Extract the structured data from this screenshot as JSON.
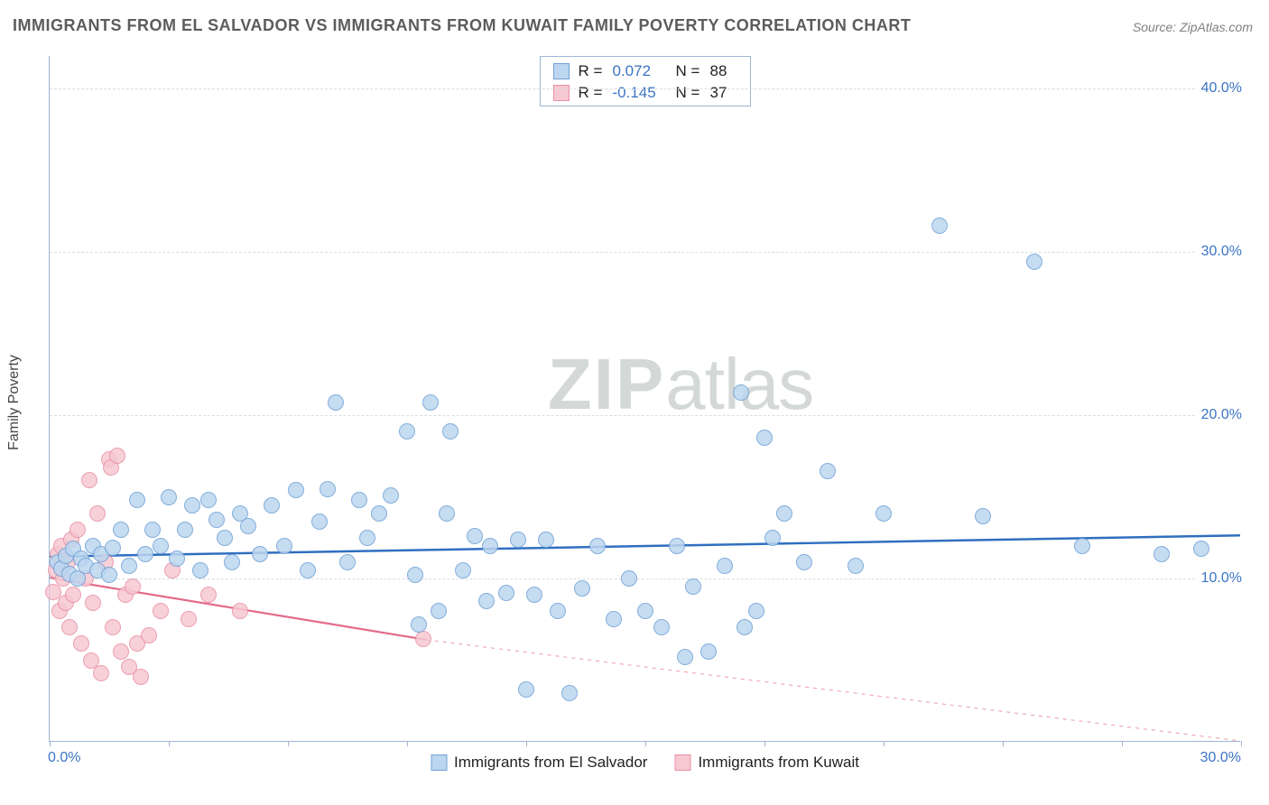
{
  "title": "IMMIGRANTS FROM EL SALVADOR VS IMMIGRANTS FROM KUWAIT FAMILY POVERTY CORRELATION CHART",
  "source": "Source: ZipAtlas.com",
  "ylabel": "Family Poverty",
  "watermark_bold": "ZIP",
  "watermark_rest": "atlas",
  "chart": {
    "type": "scatter",
    "xlim": [
      0,
      30
    ],
    "ylim": [
      0,
      42
    ],
    "x_ticks": [
      0,
      3,
      6,
      9,
      12,
      15,
      18,
      21,
      24,
      27,
      30
    ],
    "x_tick_labels": {
      "0": "0.0%",
      "30": "30.0%"
    },
    "y_ticks": [
      10,
      20,
      30,
      40
    ],
    "y_tick_labels": {
      "10": "10.0%",
      "20": "20.0%",
      "30": "30.0%",
      "40": "40.0%"
    },
    "background_color": "#ffffff",
    "grid_color": "#d8dde3",
    "axis_color": "#9bb7d4",
    "marker_radius": 9,
    "marker_border": 1
  },
  "series": [
    {
      "key": "el_salvador",
      "label": "Immigrants from El Salvador",
      "fill": "#bcd6ef",
      "stroke": "#6fa0d6",
      "trend_color": "#2f6fc0",
      "trend_width": 2.5,
      "trend_dash": "none",
      "trend": {
        "x1": 0,
        "y1": 11.3,
        "x2": 30,
        "y2": 12.6
      },
      "R": "0.072",
      "N": "88",
      "points": [
        [
          0.2,
          11.0
        ],
        [
          0.3,
          10.6
        ],
        [
          0.4,
          11.4
        ],
        [
          0.5,
          10.3
        ],
        [
          0.6,
          11.8
        ],
        [
          0.7,
          10.0
        ],
        [
          0.8,
          11.2
        ],
        [
          0.9,
          10.8
        ],
        [
          1.1,
          12.0
        ],
        [
          1.2,
          10.5
        ],
        [
          1.3,
          11.5
        ],
        [
          1.5,
          10.2
        ],
        [
          1.6,
          11.9
        ],
        [
          1.8,
          13.0
        ],
        [
          2.0,
          10.8
        ],
        [
          2.2,
          14.8
        ],
        [
          2.4,
          11.5
        ],
        [
          2.6,
          13.0
        ],
        [
          2.8,
          12.0
        ],
        [
          3.0,
          15.0
        ],
        [
          3.2,
          11.2
        ],
        [
          3.4,
          13.0
        ],
        [
          3.6,
          14.5
        ],
        [
          3.8,
          10.5
        ],
        [
          4.0,
          14.8
        ],
        [
          4.2,
          13.6
        ],
        [
          4.4,
          12.5
        ],
        [
          4.6,
          11.0
        ],
        [
          4.8,
          14.0
        ],
        [
          5.0,
          13.2
        ],
        [
          5.3,
          11.5
        ],
        [
          5.6,
          14.5
        ],
        [
          5.9,
          12.0
        ],
        [
          6.2,
          15.4
        ],
        [
          6.5,
          10.5
        ],
        [
          6.8,
          13.5
        ],
        [
          7.0,
          15.5
        ],
        [
          7.2,
          20.8
        ],
        [
          7.5,
          11.0
        ],
        [
          7.8,
          14.8
        ],
        [
          8.0,
          12.5
        ],
        [
          8.3,
          14.0
        ],
        [
          8.6,
          15.1
        ],
        [
          9.0,
          19.0
        ],
        [
          9.2,
          10.2
        ],
        [
          9.3,
          7.2
        ],
        [
          9.6,
          20.8
        ],
        [
          9.8,
          8.0
        ],
        [
          10.0,
          14.0
        ],
        [
          10.1,
          19.0
        ],
        [
          10.4,
          10.5
        ],
        [
          10.7,
          12.6
        ],
        [
          11.0,
          8.6
        ],
        [
          11.1,
          12.0
        ],
        [
          11.5,
          9.1
        ],
        [
          11.8,
          12.4
        ],
        [
          12.0,
          3.2
        ],
        [
          12.2,
          9.0
        ],
        [
          12.5,
          12.4
        ],
        [
          12.8,
          8.0
        ],
        [
          13.1,
          3.0
        ],
        [
          13.4,
          9.4
        ],
        [
          13.8,
          12.0
        ],
        [
          14.2,
          7.5
        ],
        [
          14.6,
          10.0
        ],
        [
          15.0,
          8.0
        ],
        [
          15.4,
          7.0
        ],
        [
          15.8,
          12.0
        ],
        [
          16.0,
          5.2
        ],
        [
          16.2,
          9.5
        ],
        [
          16.6,
          5.5
        ],
        [
          17.0,
          10.8
        ],
        [
          17.4,
          21.4
        ],
        [
          17.5,
          7.0
        ],
        [
          17.8,
          8.0
        ],
        [
          18.0,
          18.6
        ],
        [
          18.2,
          12.5
        ],
        [
          18.5,
          14.0
        ],
        [
          19.0,
          11.0
        ],
        [
          19.6,
          16.6
        ],
        [
          20.3,
          10.8
        ],
        [
          21.0,
          14.0
        ],
        [
          22.4,
          31.6
        ],
        [
          23.5,
          13.8
        ],
        [
          24.8,
          29.4
        ],
        [
          26.0,
          12.0
        ],
        [
          28.0,
          11.5
        ],
        [
          29.0,
          11.8
        ]
      ]
    },
    {
      "key": "kuwait",
      "label": "Immigrants from Kuwait",
      "fill": "#f6c8d2",
      "stroke": "#e98ea4",
      "trend_color": "#e46b8a",
      "trend_width": 2.2,
      "trend_dash": "none",
      "trend": {
        "x1": 0,
        "y1": 10.0,
        "x2": 9.5,
        "y2": 6.2
      },
      "trend_ext_dash": "4,5",
      "trend_ext": {
        "x1": 9.5,
        "y1": 6.2,
        "x2": 30,
        "y2": 0.0
      },
      "R": "-0.145",
      "N": "37",
      "points": [
        [
          0.1,
          9.2
        ],
        [
          0.15,
          10.5
        ],
        [
          0.2,
          11.5
        ],
        [
          0.25,
          8.0
        ],
        [
          0.3,
          12.0
        ],
        [
          0.35,
          10.0
        ],
        [
          0.4,
          8.5
        ],
        [
          0.45,
          11.0
        ],
        [
          0.5,
          7.0
        ],
        [
          0.55,
          12.4
        ],
        [
          0.6,
          9.0
        ],
        [
          0.7,
          13.0
        ],
        [
          0.8,
          6.0
        ],
        [
          0.9,
          10.0
        ],
        [
          1.0,
          16.0
        ],
        [
          1.05,
          5.0
        ],
        [
          1.1,
          8.5
        ],
        [
          1.2,
          14.0
        ],
        [
          1.3,
          4.2
        ],
        [
          1.4,
          11.0
        ],
        [
          1.5,
          17.3
        ],
        [
          1.55,
          16.8
        ],
        [
          1.6,
          7.0
        ],
        [
          1.7,
          17.5
        ],
        [
          1.8,
          5.5
        ],
        [
          1.9,
          9.0
        ],
        [
          2.0,
          4.6
        ],
        [
          2.1,
          9.5
        ],
        [
          2.2,
          6.0
        ],
        [
          2.3,
          4.0
        ],
        [
          2.5,
          6.5
        ],
        [
          2.8,
          8.0
        ],
        [
          3.1,
          10.5
        ],
        [
          3.5,
          7.5
        ],
        [
          4.0,
          9.0
        ],
        [
          4.8,
          8.0
        ],
        [
          9.4,
          6.3
        ]
      ]
    }
  ],
  "stats_legend_labels": {
    "R": "R  =",
    "N": "N  ="
  },
  "bottom_legend_order": [
    "el_salvador",
    "kuwait"
  ]
}
